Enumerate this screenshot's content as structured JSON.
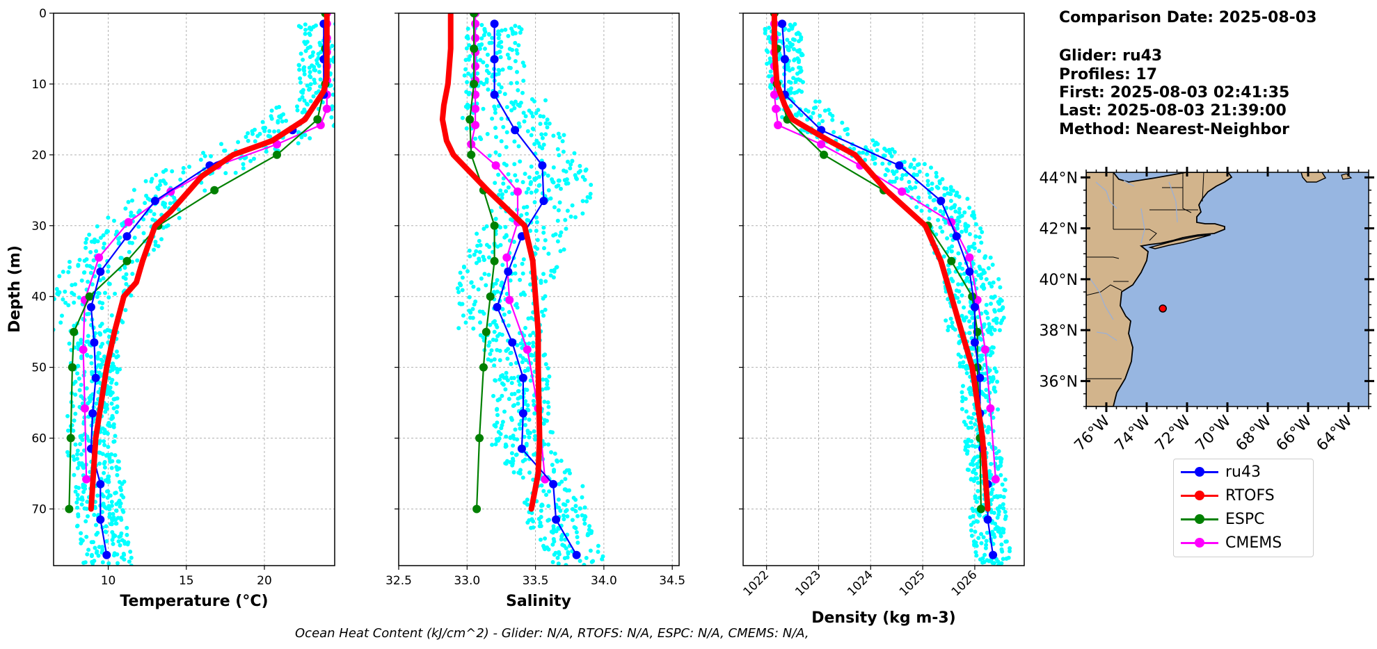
{
  "info": {
    "comparison": "Comparison Date: 2025-08-03",
    "glider": "Glider: ru43",
    "profiles": "Profiles: 17",
    "first": "First: 2025-08-03 02:41:35",
    "last": "Last: 2025-08-03 21:39:00",
    "method": "Method: Nearest-Neighbor"
  },
  "footer": "Ocean Heat Content (kJ/cm^2) - Glider: N/A,  RTOFS: N/A,  ESPC: N/A,  CMEMS: N/A,",
  "colors": {
    "glider_scatter": "#00ffff",
    "ru43": "#0000ff",
    "RTOFS": "#ff0000",
    "ESPC": "#008000",
    "CMEMS": "#ff00ff",
    "land": "#d2b48c",
    "ocean": "#97b6e1"
  },
  "legend": [
    {
      "name": "ru43",
      "color": "#0000ff"
    },
    {
      "name": "RTOFS",
      "color": "#ff0000"
    },
    {
      "name": "ESPC",
      "color": "#008000"
    },
    {
      "name": "CMEMS",
      "color": "#ff00ff"
    }
  ],
  "chart_data": [
    {
      "type": "line",
      "xlabel": "Temperature (°C)",
      "ylabel": "Depth (m)",
      "xlim": [
        6.5,
        24.5
      ],
      "ylim": [
        78,
        0
      ],
      "xticks": [
        10,
        15,
        20
      ],
      "yticks": [
        0,
        10,
        20,
        30,
        40,
        50,
        60,
        70
      ],
      "grid": true,
      "series": [
        {
          "name": "ru43",
          "x": [
            23.8,
            23.8,
            23.8,
            21.8,
            16.5,
            13.0,
            11.2,
            9.5,
            8.9,
            9.1,
            9.2,
            9.0,
            8.9,
            9.5,
            9.5,
            9.9
          ],
          "y": [
            1.5,
            6.5,
            11.5,
            16.5,
            21.5,
            26.5,
            31.5,
            36.5,
            41.5,
            46.5,
            51.5,
            56.5,
            61.5,
            66.5,
            71.5,
            76.5
          ]
        },
        {
          "name": "RTOFS",
          "x": [
            24.0,
            24.0,
            24.0,
            24.0,
            23.8,
            23.5,
            22.6,
            20.5,
            18.0,
            16.0,
            15.2,
            14.0,
            13.0,
            12.2,
            11.8,
            11.0,
            10.4,
            9.9,
            9.2,
            8.9
          ],
          "y": [
            0,
            3,
            6,
            9,
            11,
            12,
            15,
            18,
            20,
            23,
            25,
            28,
            30,
            35,
            38,
            40,
            45,
            50,
            60,
            70
          ]
        },
        {
          "name": "ESPC",
          "x": [
            23.9,
            23.9,
            23.9,
            23.4,
            20.8,
            16.8,
            13.2,
            11.2,
            8.8,
            7.8,
            7.7,
            7.6,
            7.5
          ],
          "y": [
            0,
            5,
            10,
            15,
            20,
            25,
            30,
            35,
            40,
            45,
            50,
            60,
            70
          ]
        },
        {
          "name": "CMEMS",
          "x": [
            24.0,
            24.0,
            24.0,
            24.0,
            24.0,
            24.0,
            24.0,
            24.0,
            23.6,
            20.8,
            17.0,
            14.0,
            11.3,
            9.4,
            8.5,
            8.4,
            8.5,
            8.6
          ],
          "y": [
            0,
            1.5,
            3.5,
            5.5,
            7.5,
            9.5,
            11.5,
            13.5,
            15.8,
            18.5,
            21.5,
            25.2,
            29.5,
            34.5,
            40.5,
            47.5,
            55.8,
            65.8
          ]
        }
      ]
    },
    {
      "type": "line",
      "xlabel": "Salinity",
      "xlim": [
        32.5,
        34.55
      ],
      "ylim": [
        78,
        0
      ],
      "xticks": [
        32.5,
        33.0,
        33.5,
        34.0,
        34.5
      ],
      "yticks": [
        0,
        10,
        20,
        30,
        40,
        50,
        60,
        70
      ],
      "grid": true,
      "series": [
        {
          "name": "ru43",
          "x": [
            33.2,
            33.2,
            33.2,
            33.35,
            33.55,
            33.56,
            33.4,
            33.3,
            33.22,
            33.33,
            33.41,
            33.41,
            33.4,
            33.63,
            33.65,
            33.8
          ],
          "y": [
            1.5,
            6.5,
            11.5,
            16.5,
            21.5,
            26.5,
            31.5,
            36.5,
            41.5,
            46.5,
            51.5,
            56.5,
            61.5,
            66.5,
            71.5,
            76.5
          ]
        },
        {
          "name": "RTOFS",
          "x": [
            32.88,
            32.88,
            32.86,
            32.83,
            32.82,
            32.85,
            32.9,
            33.15,
            33.42,
            33.48,
            33.5,
            33.52,
            33.52,
            33.53,
            33.52,
            33.47
          ],
          "y": [
            0,
            5,
            10,
            13,
            15,
            18,
            20,
            25,
            30,
            35,
            40,
            45,
            50,
            60,
            65,
            70
          ]
        },
        {
          "name": "ESPC",
          "x": [
            33.05,
            33.05,
            33.05,
            33.02,
            33.03,
            33.12,
            33.2,
            33.2,
            33.17,
            33.14,
            33.12,
            33.09,
            33.07
          ],
          "y": [
            0,
            5,
            10,
            15,
            20,
            25,
            30,
            35,
            40,
            45,
            50,
            60,
            70
          ]
        },
        {
          "name": "CMEMS",
          "x": [
            33.06,
            33.06,
            33.06,
            33.06,
            33.06,
            33.06,
            33.06,
            33.06,
            33.06,
            33.03,
            33.21,
            33.37,
            33.37,
            33.29,
            33.31,
            33.44,
            33.52,
            33.57
          ],
          "y": [
            0,
            1.5,
            3.5,
            5.5,
            7.5,
            9.5,
            11.5,
            13.5,
            15.8,
            18.5,
            21.5,
            25.2,
            29.5,
            34.5,
            40.5,
            47.5,
            55.8,
            65.8
          ]
        }
      ]
    },
    {
      "type": "line",
      "xlabel": "Density (kg m-3)",
      "xlim": [
        1021.55,
        1026.95
      ],
      "ylim": [
        78,
        0
      ],
      "xticks": [
        1022,
        1023,
        1024,
        1025,
        1026
      ],
      "yticks": [
        0,
        10,
        20,
        30,
        40,
        50,
        60,
        70
      ],
      "grid": true,
      "series": [
        {
          "name": "ru43",
          "x": [
            1022.3,
            1022.35,
            1022.35,
            1023.05,
            1024.55,
            1025.35,
            1025.65,
            1025.9,
            1026.0,
            1026.0,
            1026.1,
            1026.1,
            1026.15,
            1026.25,
            1026.25,
            1026.35
          ],
          "y": [
            1.5,
            6.5,
            11.5,
            16.5,
            21.5,
            26.5,
            31.5,
            36.5,
            41.5,
            46.5,
            51.5,
            56.5,
            61.5,
            66.5,
            71.5,
            76.5
          ]
        },
        {
          "name": "RTOFS",
          "x": [
            1022.15,
            1022.15,
            1022.2,
            1022.35,
            1022.5,
            1023.2,
            1023.7,
            1024.3,
            1025.05,
            1025.35,
            1025.55,
            1025.75,
            1025.95,
            1026.15,
            1026.25
          ],
          "y": [
            0,
            5,
            10,
            13,
            15,
            18,
            20,
            25,
            30,
            35,
            40,
            45,
            50,
            60,
            70
          ]
        },
        {
          "name": "ESPC",
          "x": [
            1022.15,
            1022.2,
            1022.2,
            1022.4,
            1023.1,
            1024.25,
            1025.1,
            1025.55,
            1025.95,
            1026.05,
            1026.05,
            1026.1,
            1026.12
          ],
          "y": [
            0,
            5,
            10,
            15,
            20,
            25,
            30,
            35,
            40,
            45,
            50,
            60,
            70
          ]
        },
        {
          "name": "CMEMS",
          "x": [
            1022.15,
            1022.15,
            1022.15,
            1022.15,
            1022.15,
            1022.15,
            1022.15,
            1022.18,
            1022.22,
            1023.05,
            1023.8,
            1024.6,
            1025.55,
            1025.9,
            1026.05,
            1026.2,
            1026.3,
            1026.4
          ],
          "y": [
            0,
            1.5,
            3.5,
            5.5,
            7.5,
            9.5,
            11.5,
            13.5,
            15.8,
            18.5,
            21.5,
            25.2,
            29.5,
            34.5,
            40.5,
            47.5,
            55.8,
            65.8
          ]
        }
      ]
    }
  ],
  "map": {
    "lat_labels": [
      "44°N",
      "42°N",
      "40°N",
      "38°N",
      "36°N"
    ],
    "lon_labels": [
      "76°W",
      "74°W",
      "72°W",
      "70°W",
      "68°W",
      "66°W",
      "64°W"
    ],
    "lat_range": [
      35,
      44.2
    ],
    "lon_range": [
      -77,
      -63
    ],
    "glider_position": {
      "lon": -73.2,
      "lat": 38.85
    }
  }
}
